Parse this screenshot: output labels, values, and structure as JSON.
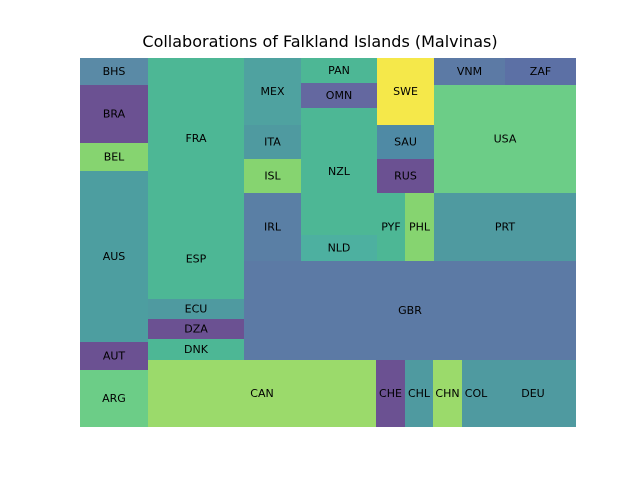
{
  "chart_data": {
    "type": "treemap",
    "title": "Collaborations of Falkland Islands (Malvinas)",
    "palette": {
      "purple": "#6b5192",
      "blue": "#5c7aa5",
      "teal": "#4f9aa0",
      "teal_green": "#4db795",
      "green": "#6ccd87",
      "lime": "#9bda6b",
      "light_green": "#86d470",
      "yellow": "#f5e84a"
    },
    "cells": [
      {
        "label": "BHS",
        "color": "#5a8aa6"
      },
      {
        "label": "BRA",
        "color": "#6b5192"
      },
      {
        "label": "BEL",
        "color": "#86d470"
      },
      {
        "label": "AUS",
        "color": "#4d9ea0"
      },
      {
        "label": "AUT",
        "color": "#6b5192"
      },
      {
        "label": "ARG",
        "color": "#6ccd87"
      },
      {
        "label": "FRA",
        "color": "#4db795"
      },
      {
        "label": "ESP",
        "color": "#4db795"
      },
      {
        "label": "ECU",
        "color": "#4f9aa0"
      },
      {
        "label": "DZA",
        "color": "#6b5192"
      },
      {
        "label": "DNK",
        "color": "#4db795"
      },
      {
        "label": "CAN",
        "color": "#9bda6b"
      },
      {
        "label": "MEX",
        "color": "#4fa2a0"
      },
      {
        "label": "ITA",
        "color": "#4f9aa0"
      },
      {
        "label": "ISL",
        "color": "#86d470"
      },
      {
        "label": "IRL",
        "color": "#5a7fa5"
      },
      {
        "label": "PAN",
        "color": "#4db795"
      },
      {
        "label": "OMN",
        "color": "#6468a0"
      },
      {
        "label": "NZL",
        "color": "#4db795"
      },
      {
        "label": "NLD",
        "color": "#4db0a0"
      },
      {
        "label": "SWE",
        "color": "#f5e84a"
      },
      {
        "label": "SAU",
        "color": "#4f8aa5"
      },
      {
        "label": "RUS",
        "color": "#6b5192"
      },
      {
        "label": "PYF",
        "color": "#4db795"
      },
      {
        "label": "PHL",
        "color": "#86d470"
      },
      {
        "label": "VNM",
        "color": "#5c7aa5"
      },
      {
        "label": "ZAF",
        "color": "#5c70a5"
      },
      {
        "label": "USA",
        "color": "#6ccd87"
      },
      {
        "label": "PRT",
        "color": "#4f9aa0"
      },
      {
        "label": "GBR",
        "color": "#5c7aa5"
      },
      {
        "label": "CHE",
        "color": "#6b5192"
      },
      {
        "label": "CHL",
        "color": "#4f9aa0"
      },
      {
        "label": "CHN",
        "color": "#9bda6b"
      },
      {
        "label": "COL",
        "color": "#4f9aa0"
      },
      {
        "label": "DEU",
        "color": "#4f9aa0"
      }
    ]
  }
}
